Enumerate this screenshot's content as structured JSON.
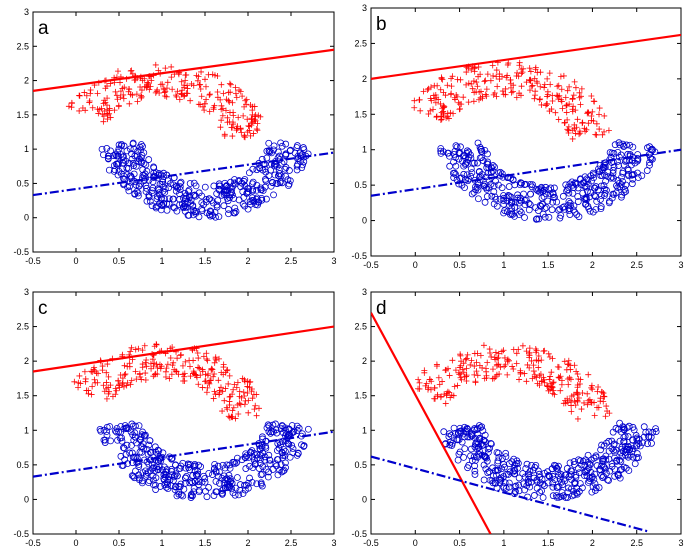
{
  "chart_data": [
    {
      "type": "scatter",
      "panel_label": "a",
      "xlim": [
        -0.5,
        3
      ],
      "ylim": [
        -0.5,
        3
      ],
      "xticks": [
        "-0.5",
        "0",
        "0.5",
        "1",
        "1.5",
        "2",
        "2.5",
        "3"
      ],
      "yticks": [
        "-0.5",
        "0",
        "0.5",
        "1",
        "1.5",
        "2",
        "2.5",
        "3"
      ],
      "series": [
        {
          "name": "upper moon",
          "marker": "+",
          "color": "#ff0000",
          "center": [
            1.0,
            1.0
          ],
          "radius": 1.0,
          "angle_range_deg": [
            10,
            150
          ],
          "noise": 0.25,
          "count": 260
        },
        {
          "name": "lower moon",
          "marker": "o",
          "color": "#0000cc",
          "center": [
            1.5,
            1.25
          ],
          "radius": 1.0,
          "angle_range_deg": [
            190,
            350
          ],
          "noise": 0.25,
          "count": 420
        }
      ],
      "lines": [
        {
          "name": "boundary red",
          "style": "solid",
          "color": "#ff0000",
          "points": [
            [
              -0.5,
              1.85
            ],
            [
              3,
              2.45
            ]
          ]
        },
        {
          "name": "boundary blue",
          "style": "dashdot",
          "color": "#0000cc",
          "points": [
            [
              -0.5,
              0.33
            ],
            [
              3,
              0.95
            ]
          ]
        }
      ]
    },
    {
      "type": "scatter",
      "panel_label": "b",
      "xlim": [
        -0.5,
        3
      ],
      "ylim": [
        -0.5,
        3
      ],
      "xticks": [
        "-0.5",
        "0",
        "0.5",
        "1",
        "1.5",
        "2",
        "2.5",
        "3"
      ],
      "yticks": [
        "-0.5",
        "0",
        "0.5",
        "1",
        "1.5",
        "2",
        "2.5",
        "3"
      ],
      "series": [
        {
          "name": "upper moon",
          "marker": "+",
          "color": "#ff0000",
          "center": [
            1.0,
            1.0
          ],
          "radius": 1.0,
          "angle_range_deg": [
            10,
            150
          ],
          "noise": 0.25,
          "count": 260
        },
        {
          "name": "lower moon",
          "marker": "o",
          "color": "#0000cc",
          "center": [
            1.5,
            1.25
          ],
          "radius": 1.0,
          "angle_range_deg": [
            190,
            350
          ],
          "noise": 0.25,
          "count": 420
        }
      ],
      "lines": [
        {
          "name": "boundary red",
          "style": "solid",
          "color": "#ff0000",
          "points": [
            [
              -0.5,
              2.0
            ],
            [
              3,
              2.62
            ]
          ]
        },
        {
          "name": "boundary blue",
          "style": "dashdot",
          "color": "#0000cc",
          "points": [
            [
              -0.5,
              0.35
            ],
            [
              3,
              1.0
            ]
          ]
        }
      ]
    },
    {
      "type": "scatter",
      "panel_label": "c",
      "xlim": [
        -0.5,
        3
      ],
      "ylim": [
        -0.5,
        3
      ],
      "xticks": [
        "-0.5",
        "0",
        "0.5",
        "1",
        "1.5",
        "2",
        "2.5",
        "3"
      ],
      "yticks": [
        "-0.5",
        "0",
        "0.5",
        "1",
        "1.5",
        "2",
        "2.5",
        "3"
      ],
      "series": [
        {
          "name": "upper moon",
          "marker": "+",
          "color": "#ff0000",
          "center": [
            1.0,
            1.0
          ],
          "radius": 1.0,
          "angle_range_deg": [
            10,
            150
          ],
          "noise": 0.25,
          "count": 260
        },
        {
          "name": "lower moon",
          "marker": "o",
          "color": "#0000cc",
          "center": [
            1.5,
            1.25
          ],
          "radius": 1.0,
          "angle_range_deg": [
            190,
            350
          ],
          "noise": 0.25,
          "count": 420
        }
      ],
      "lines": [
        {
          "name": "boundary red",
          "style": "solid",
          "color": "#ff0000",
          "points": [
            [
              -0.5,
              1.85
            ],
            [
              3,
              2.5
            ]
          ]
        },
        {
          "name": "boundary blue",
          "style": "dashdot",
          "color": "#0000cc",
          "points": [
            [
              -0.5,
              0.33
            ],
            [
              3,
              0.98
            ]
          ]
        }
      ]
    },
    {
      "type": "scatter",
      "panel_label": "d",
      "xlim": [
        -0.5,
        3
      ],
      "ylim": [
        -0.5,
        3
      ],
      "xticks": [
        "-0.5",
        "0",
        "0.5",
        "1",
        "1.5",
        "2",
        "2.5",
        "3"
      ],
      "yticks": [
        "-0.5",
        "0",
        "0.5",
        "1",
        "1.5",
        "2",
        "2.5",
        "3"
      ],
      "series": [
        {
          "name": "upper moon",
          "marker": "+",
          "color": "#ff0000",
          "center": [
            1.0,
            1.0
          ],
          "radius": 1.0,
          "angle_range_deg": [
            10,
            150
          ],
          "noise": 0.25,
          "count": 260
        },
        {
          "name": "lower moon",
          "marker": "o",
          "color": "#0000cc",
          "center": [
            1.5,
            1.25
          ],
          "radius": 1.0,
          "angle_range_deg": [
            190,
            350
          ],
          "noise": 0.25,
          "count": 420
        }
      ],
      "lines": [
        {
          "name": "boundary red",
          "style": "solid",
          "color": "#ff0000",
          "points": [
            [
              -0.5,
              2.7
            ],
            [
              0.85,
              -0.5
            ]
          ]
        },
        {
          "name": "boundary blue",
          "style": "dashdot",
          "color": "#0000cc",
          "points": [
            [
              -0.5,
              0.62
            ],
            [
              2.65,
              -0.47
            ]
          ]
        }
      ]
    }
  ]
}
